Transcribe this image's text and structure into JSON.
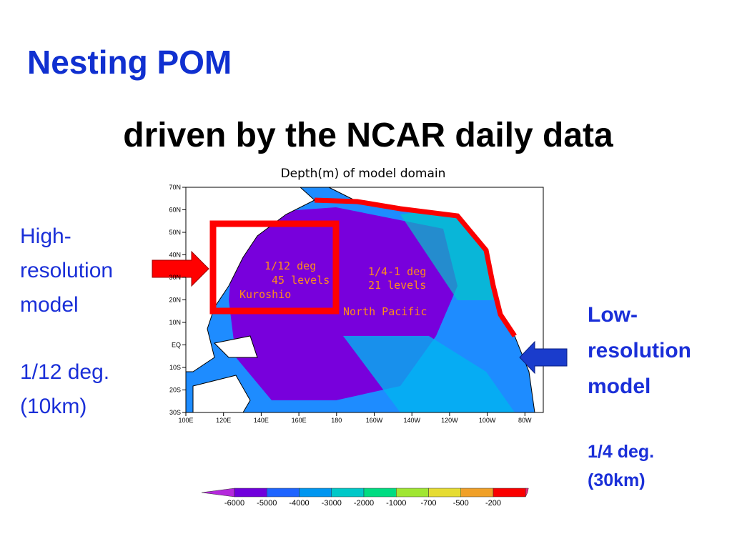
{
  "header": {
    "title": "Nesting POM",
    "subtitle": "driven by the NCAR daily data"
  },
  "map": {
    "title": "Depth(m) of model domain",
    "lat_labels": [
      "70N",
      "60N",
      "50N",
      "40N",
      "30N",
      "20N",
      "10N",
      "EQ",
      "10S",
      "20S",
      "30S"
    ],
    "lon_labels": [
      "100E",
      "120E",
      "140E",
      "160E",
      "180",
      "160W",
      "140W",
      "120W",
      "100W",
      "80W"
    ],
    "annotations": [
      "1/12 deg",
      "45 levels",
      "Kuroshio",
      "1/4-1 deg",
      "21 levels",
      "North Pacific"
    ]
  },
  "colorbar": {
    "levels": [
      -6000,
      -5000,
      -4000,
      -3000,
      -2000,
      -1000,
      -700,
      -500,
      -200
    ],
    "colors": [
      "#b428dc",
      "#7000dc",
      "#1e64ff",
      "#0096f0",
      "#00c8c8",
      "#00dc82",
      "#a0e632",
      "#e6dc32",
      "#f0a028",
      "#fa0000",
      "#e6287a"
    ]
  },
  "left": {
    "lines": [
      "High-",
      "resolution",
      "model"
    ],
    "detail": [
      "1/12 deg.",
      "(10km)"
    ]
  },
  "right": {
    "lines": [
      "Low-",
      "resolution",
      "model"
    ],
    "detail": [
      "1/4 deg.",
      "(30km)"
    ]
  }
}
